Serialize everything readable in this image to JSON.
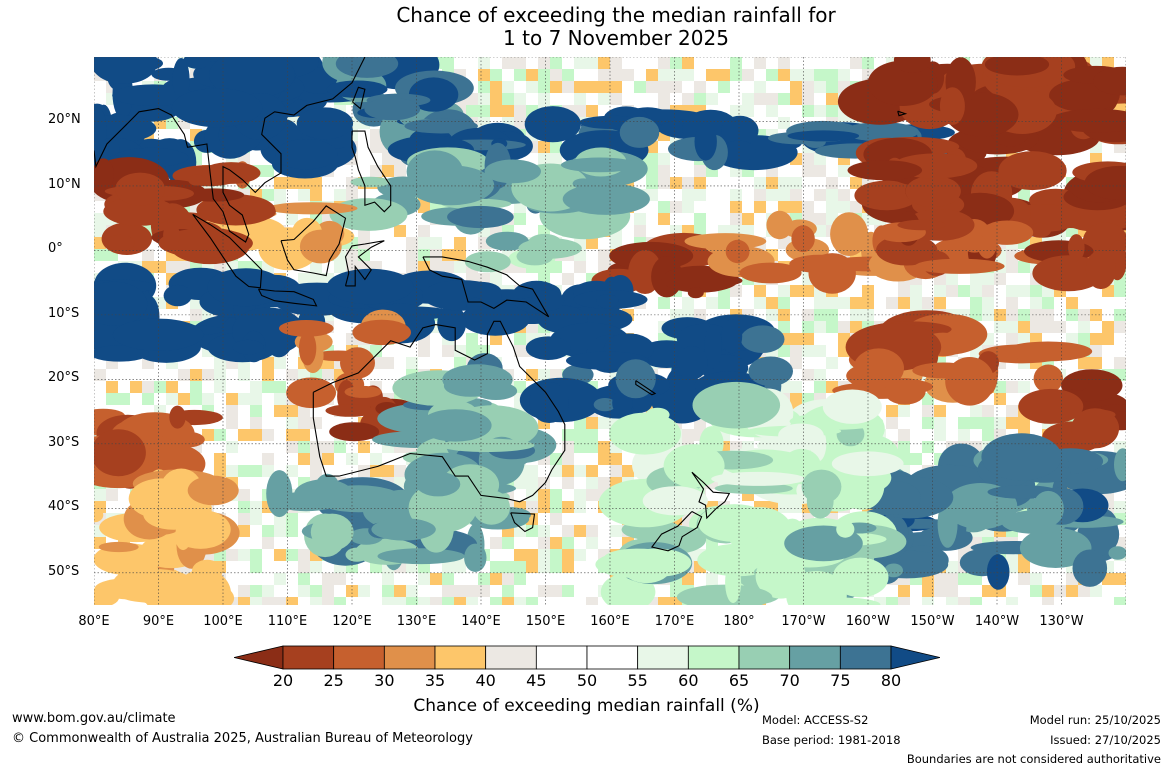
{
  "title": {
    "line1": "Chance of exceeding the median rainfall for",
    "line2": "1 to 7 November 2025"
  },
  "map": {
    "extent": {
      "lon_min": 80,
      "lon_max": 240,
      "lat_min": -55,
      "lat_max": 30
    },
    "lat_labels": [
      {
        "lat": 20,
        "text": "20°N"
      },
      {
        "lat": 10,
        "text": "10°N"
      },
      {
        "lat": 0,
        "text": "0°"
      },
      {
        "lat": -10,
        "text": "10°S"
      },
      {
        "lat": -20,
        "text": "20°S"
      },
      {
        "lat": -30,
        "text": "30°S"
      },
      {
        "lat": -40,
        "text": "40°S"
      },
      {
        "lat": -50,
        "text": "50°S"
      }
    ],
    "lon_labels": [
      {
        "lon": 80,
        "text": "80°E"
      },
      {
        "lon": 90,
        "text": "90°E"
      },
      {
        "lon": 100,
        "text": "100°E"
      },
      {
        "lon": 110,
        "text": "110°E"
      },
      {
        "lon": 120,
        "text": "120°E"
      },
      {
        "lon": 130,
        "text": "130°E"
      },
      {
        "lon": 140,
        "text": "140°E"
      },
      {
        "lon": 150,
        "text": "150°E"
      },
      {
        "lon": 160,
        "text": "160°E"
      },
      {
        "lon": 170,
        "text": "170°E"
      },
      {
        "lon": 180,
        "text": "180°"
      },
      {
        "lon": 190,
        "text": "170°W"
      },
      {
        "lon": 200,
        "text": "160°W"
      },
      {
        "lon": 210,
        "text": "150°W"
      },
      {
        "lon": 220,
        "text": "140°W"
      },
      {
        "lon": 230,
        "text": "130°W"
      }
    ],
    "regions": [
      {
        "lon": [
          80,
          118
        ],
        "lat": [
          13,
          30
        ],
        "v": 85
      },
      {
        "lon": [
          118,
          135
        ],
        "lat": [
          18,
          30
        ],
        "v": 78
      },
      {
        "lon": [
          130,
          208
        ],
        "lat": [
          14,
          21
        ],
        "v": 82
      },
      {
        "lon": [
          122,
          160
        ],
        "lat": [
          5,
          14
        ],
        "v": 72
      },
      {
        "lon": [
          100,
          118
        ],
        "lat": [
          -1,
          7
        ],
        "v": 35
      },
      {
        "lon": [
          80,
          105
        ],
        "lat": [
          0,
          13
        ],
        "v": 22
      },
      {
        "lon": [
          140,
          152
        ],
        "lat": [
          -2,
          2
        ],
        "v": 66
      },
      {
        "lon": [
          160,
          176
        ],
        "lat": [
          -7,
          1
        ],
        "v": 18
      },
      {
        "lon": [
          176,
          205
        ],
        "lat": [
          -4,
          4
        ],
        "v": 30
      },
      {
        "lon": [
          200,
          240
        ],
        "lat": [
          4,
          30
        ],
        "v": 20
      },
      {
        "lon": [
          205,
          240
        ],
        "lat": [
          -4,
          4
        ],
        "v": 24
      },
      {
        "lon": [
          80,
          110
        ],
        "lat": [
          -16,
          -5
        ],
        "v": 85
      },
      {
        "lon": [
          110,
          165
        ],
        "lat": [
          -12,
          -5
        ],
        "v": 86
      },
      {
        "lon": [
          150,
          185
        ],
        "lat": [
          -24,
          -12
        ],
        "v": 82
      },
      {
        "lon": [
          112,
          125
        ],
        "lat": [
          -18,
          -10
        ],
        "v": 28
      },
      {
        "lon": [
          120,
          128
        ],
        "lat": [
          -32,
          -20
        ],
        "v": 18
      },
      {
        "lon": [
          113,
          122
        ],
        "lat": [
          -26,
          -20
        ],
        "v": 24
      },
      {
        "lon": [
          130,
          150
        ],
        "lat": [
          -35,
          -18
        ],
        "v": 72
      },
      {
        "lon": [
          80,
          100
        ],
        "lat": [
          -35,
          -25
        ],
        "v": 25
      },
      {
        "lon": [
          80,
          100
        ],
        "lat": [
          -55,
          -36
        ],
        "v": 35
      },
      {
        "lon": [
          108,
          145
        ],
        "lat": [
          -48,
          -36
        ],
        "v": 72
      },
      {
        "lon": [
          200,
          228
        ],
        "lat": [
          -22,
          -12
        ],
        "v": 28
      },
      {
        "lon": [
          228,
          240
        ],
        "lat": [
          -30,
          -20
        ],
        "v": 20
      },
      {
        "lon": [
          200,
          240
        ],
        "lat": [
          -50,
          -32
        ],
        "v": 76
      },
      {
        "lon": [
          160,
          200
        ],
        "lat": [
          -55,
          -42
        ],
        "v": 66
      },
      {
        "lon": [
          165,
          200
        ],
        "lat": [
          -40,
          -24
        ],
        "v": 62
      }
    ]
  },
  "colorbar": {
    "levels": [
      20,
      25,
      30,
      35,
      40,
      45,
      50,
      55,
      60,
      65,
      70,
      75,
      80
    ],
    "colors": [
      "#8b2d16",
      "#a6401f",
      "#c6602e",
      "#e0904a",
      "#fdc66a",
      "#ece8e3",
      "#ffffff",
      "#ffffff",
      "#e8f7e8",
      "#c5f7c9",
      "#98cfb3",
      "#66a0a3",
      "#3d7393",
      "#114b86"
    ],
    "tick_labels": [
      "20",
      "25",
      "30",
      "35",
      "40",
      "45",
      "50",
      "55",
      "60",
      "65",
      "70",
      "75",
      "80"
    ],
    "title": "Chance of exceeding median rainfall (%)"
  },
  "footer": {
    "website": "www.bom.gov.au/climate",
    "copyright": "© Commonwealth of Australia 2025, Australian Bureau of Meteorology",
    "model": "Model: ACCESS-S2",
    "base_period": "Base period: 1981-2018",
    "model_run": "Model run: 25/10/2025",
    "issued": "Issued: 27/10/2025",
    "disclaimer": "Boundaries are not considered authoritative"
  }
}
